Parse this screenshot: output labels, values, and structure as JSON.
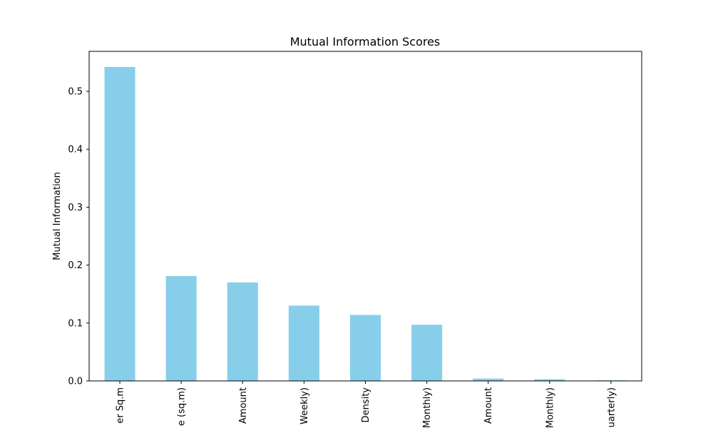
{
  "chart_data": {
    "type": "bar",
    "title": "Mutual Information Scores",
    "xlabel": "",
    "ylabel": "Mutual Information",
    "categories": [
      "er Sq.m",
      "e (sq.m)",
      "Amount",
      "Weekly)",
      "Density",
      "Monthly)",
      "Amount",
      "Monthly)",
      "uarterly)"
    ],
    "values": [
      0.542,
      0.181,
      0.17,
      0.13,
      0.114,
      0.097,
      0.004,
      0.003,
      0.001
    ],
    "ylim": [
      0,
      0.569
    ],
    "yticks": [
      0.0,
      0.1,
      0.2,
      0.3,
      0.4,
      0.5
    ],
    "ytick_labels": [
      "0.0",
      "0.1",
      "0.2",
      "0.3",
      "0.4",
      "0.5"
    ],
    "grid": false,
    "legend": "none",
    "bar_color": "#87ceeb"
  }
}
